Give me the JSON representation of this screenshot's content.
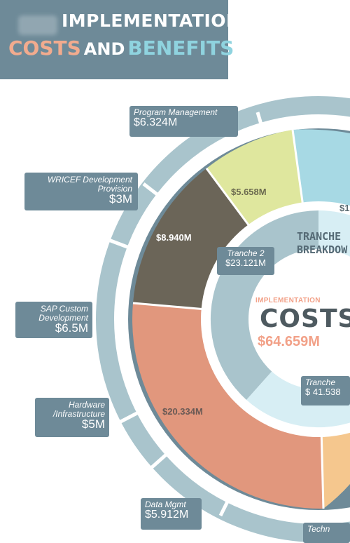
{
  "title": {
    "line1": "IMPLEMENTATION",
    "line2a": "COSTS",
    "line2b": "AND",
    "line2c": "BENEFITS"
  },
  "callouts": {
    "program_management": {
      "label": "Program Management",
      "value": "$6.324M"
    },
    "wricef": {
      "label": "WRICEF Development Provision",
      "value": "$3M"
    },
    "sap_custom": {
      "label": "SAP Custom Development",
      "value": "$6.5M"
    },
    "hardware": {
      "label": "Hardware /Infrastructure",
      "value": "$5M"
    },
    "data_mgmt": {
      "label": "Data Mgmt",
      "value": "$5.912M"
    },
    "techn": {
      "label": "Techn",
      "value": ""
    }
  },
  "segments": {
    "s1": "$5.658M",
    "s2": "$8.940M",
    "s3": "$20.334M",
    "s4": "$1"
  },
  "tranches": {
    "heading_line1": "TRANCHE",
    "heading_line2": "BREAKDOW",
    "tranche2_label": "Tranche 2",
    "tranche2_value": "$23.121M",
    "tranche1_label": "Tranche",
    "tranche1_value": "$ 41.538"
  },
  "center": {
    "small": "IMPLEMENTATION",
    "big": "COSTS",
    "value": "$64.659M"
  },
  "colors": {
    "banner": "#6e8a98",
    "outer_ring": "#a9c4cc",
    "seg_yellow": "#dfe79e",
    "seg_dark": "#6b6558",
    "seg_salmon": "#e1977d",
    "seg_light": "#d7eef4"
  }
}
